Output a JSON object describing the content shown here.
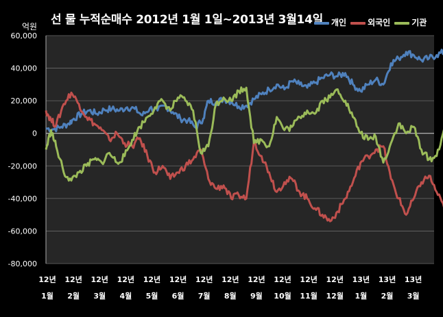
{
  "chart_data": {
    "type": "line",
    "title": "선 물 누적순매수 2012년 1월 1일~2013년 3월14일",
    "unit_label": "억원",
    "ylim": [
      -80000,
      60000
    ],
    "y_ticks": [
      "60,000",
      "40,000",
      "20,000",
      "0",
      "-20,000",
      "-40,000",
      "-60,000",
      "-80,000"
    ],
    "y_tick_values": [
      60000,
      40000,
      20000,
      0,
      -20000,
      -40000,
      -60000,
      -80000
    ],
    "x_ticks_top": [
      "12년",
      "12년",
      "12년",
      "12년",
      "12년",
      "12년",
      "12년",
      "12년",
      "12년",
      "12년",
      "12년",
      "12년",
      "13년",
      "13년",
      "13년"
    ],
    "x_ticks_bottom": [
      "1월",
      "2월",
      "3월",
      "4월",
      "5월",
      "6월",
      "7월",
      "8월",
      "9월",
      "10월",
      "11월",
      "12월",
      "1월",
      "2월",
      "3월"
    ],
    "grid": "horizontal",
    "legend_position": "top-right",
    "series": [
      {
        "name": "개인",
        "color": "#4f81bd",
        "points": [
          [
            0,
            3000
          ],
          [
            0.3,
            2500
          ],
          [
            0.6,
            4000
          ],
          [
            0.9,
            6000
          ],
          [
            1.1,
            9000
          ],
          [
            1.4,
            12000
          ],
          [
            1.7,
            14000
          ],
          [
            2.0,
            12000
          ],
          [
            2.3,
            14500
          ],
          [
            2.6,
            15000
          ],
          [
            2.9,
            14000
          ],
          [
            3.2,
            16000
          ],
          [
            3.5,
            15000
          ],
          [
            3.8,
            11000
          ],
          [
            4.1,
            15500
          ],
          [
            4.4,
            14000
          ],
          [
            4.7,
            17000
          ],
          [
            5.0,
            13000
          ],
          [
            5.3,
            9000
          ],
          [
            5.6,
            8000
          ],
          [
            5.9,
            3500
          ],
          [
            6.2,
            9000
          ],
          [
            6.4,
            20000
          ],
          [
            6.7,
            19000
          ],
          [
            7.0,
            21000
          ],
          [
            7.3,
            19500
          ],
          [
            7.6,
            16500
          ],
          [
            7.9,
            17000
          ],
          [
            8.2,
            21000
          ],
          [
            8.5,
            24000
          ],
          [
            8.8,
            27000
          ],
          [
            9.1,
            30000
          ],
          [
            9.4,
            27000
          ],
          [
            9.7,
            32000
          ],
          [
            10.0,
            30000
          ],
          [
            10.3,
            28000
          ],
          [
            10.6,
            31000
          ],
          [
            10.9,
            34000
          ],
          [
            11.2,
            36000
          ],
          [
            11.5,
            35000
          ],
          [
            11.8,
            37000
          ],
          [
            12.1,
            30000
          ],
          [
            12.4,
            26000
          ],
          [
            12.7,
            30000
          ],
          [
            13.0,
            33000
          ],
          [
            13.3,
            30000
          ],
          [
            13.6,
            43000
          ],
          [
            13.9,
            46000
          ],
          [
            14.2,
            50000
          ],
          [
            14.5,
            48000
          ],
          [
            14.8,
            45000
          ],
          [
            15.1,
            46000
          ],
          [
            15.4,
            48000
          ],
          [
            15.7,
            50000
          ]
        ]
      },
      {
        "name": "외국인",
        "color": "#c0504d",
        "points": [
          [
            0,
            14000
          ],
          [
            0.2,
            8000
          ],
          [
            0.4,
            5000
          ],
          [
            0.7,
            18000
          ],
          [
            1.0,
            25000
          ],
          [
            1.3,
            18000
          ],
          [
            1.6,
            10000
          ],
          [
            1.9,
            6000
          ],
          [
            2.2,
            2000
          ],
          [
            2.5,
            -4000
          ],
          [
            2.8,
            0
          ],
          [
            3.1,
            -6000
          ],
          [
            3.4,
            -8000
          ],
          [
            3.7,
            -3000
          ],
          [
            4.0,
            -14000
          ],
          [
            4.3,
            -24000
          ],
          [
            4.6,
            -20000
          ],
          [
            4.9,
            -28000
          ],
          [
            5.2,
            -24000
          ],
          [
            5.5,
            -20000
          ],
          [
            5.8,
            -16000
          ],
          [
            6.1,
            -10000
          ],
          [
            6.4,
            -28000
          ],
          [
            6.7,
            -34000
          ],
          [
            7.0,
            -32000
          ],
          [
            7.3,
            -40000
          ],
          [
            7.6,
            -38000
          ],
          [
            7.9,
            -40000
          ],
          [
            8.2,
            -5000
          ],
          [
            8.5,
            -14000
          ],
          [
            8.8,
            -24000
          ],
          [
            9.1,
            -36000
          ],
          [
            9.4,
            -30000
          ],
          [
            9.7,
            -28000
          ],
          [
            10.0,
            -36000
          ],
          [
            10.3,
            -40000
          ],
          [
            10.6,
            -46000
          ],
          [
            10.9,
            -50000
          ],
          [
            11.2,
            -54000
          ],
          [
            11.5,
            -48000
          ],
          [
            11.8,
            -40000
          ],
          [
            12.1,
            -30000
          ],
          [
            12.4,
            -18000
          ],
          [
            12.7,
            -14000
          ],
          [
            13.0,
            -10000
          ],
          [
            13.3,
            -8000
          ],
          [
            13.6,
            -28000
          ],
          [
            13.9,
            -40000
          ],
          [
            14.2,
            -50000
          ],
          [
            14.5,
            -40000
          ],
          [
            14.8,
            -30000
          ],
          [
            15.1,
            -26000
          ],
          [
            15.4,
            -36000
          ],
          [
            15.7,
            -46000
          ]
        ]
      },
      {
        "name": "기관",
        "color": "#9bbb59",
        "points": [
          [
            0,
            -10000
          ],
          [
            0.2,
            2000
          ],
          [
            0.4,
            -8000
          ],
          [
            0.7,
            -24000
          ],
          [
            1.0,
            -29000
          ],
          [
            1.3,
            -24000
          ],
          [
            1.6,
            -20000
          ],
          [
            1.9,
            -16000
          ],
          [
            2.2,
            -18000
          ],
          [
            2.5,
            -12000
          ],
          [
            2.8,
            -18000
          ],
          [
            3.1,
            -14000
          ],
          [
            3.4,
            -4000
          ],
          [
            3.7,
            4000
          ],
          [
            4.0,
            10000
          ],
          [
            4.3,
            16000
          ],
          [
            4.6,
            20000
          ],
          [
            4.9,
            14000
          ],
          [
            5.2,
            22000
          ],
          [
            5.5,
            20000
          ],
          [
            5.8,
            14000
          ],
          [
            6.1,
            -12000
          ],
          [
            6.4,
            -8000
          ],
          [
            6.7,
            18000
          ],
          [
            7.0,
            22000
          ],
          [
            7.3,
            20000
          ],
          [
            7.6,
            26000
          ],
          [
            7.9,
            28000
          ],
          [
            8.2,
            -6000
          ],
          [
            8.5,
            -4000
          ],
          [
            8.8,
            -8000
          ],
          [
            9.1,
            10000
          ],
          [
            9.4,
            2000
          ],
          [
            9.7,
            4000
          ],
          [
            10.0,
            10000
          ],
          [
            10.3,
            14000
          ],
          [
            10.6,
            12000
          ],
          [
            10.9,
            20000
          ],
          [
            11.2,
            22000
          ],
          [
            11.5,
            27000
          ],
          [
            11.8,
            20000
          ],
          [
            12.1,
            10000
          ],
          [
            12.4,
            0
          ],
          [
            12.7,
            -4000
          ],
          [
            13.0,
            -2000
          ],
          [
            13.3,
            -18000
          ],
          [
            13.6,
            -6000
          ],
          [
            13.9,
            6000
          ],
          [
            14.2,
            0
          ],
          [
            14.5,
            4000
          ],
          [
            14.8,
            -10000
          ],
          [
            15.1,
            -16000
          ],
          [
            15.4,
            -14000
          ],
          [
            15.7,
            3000
          ]
        ]
      }
    ]
  }
}
